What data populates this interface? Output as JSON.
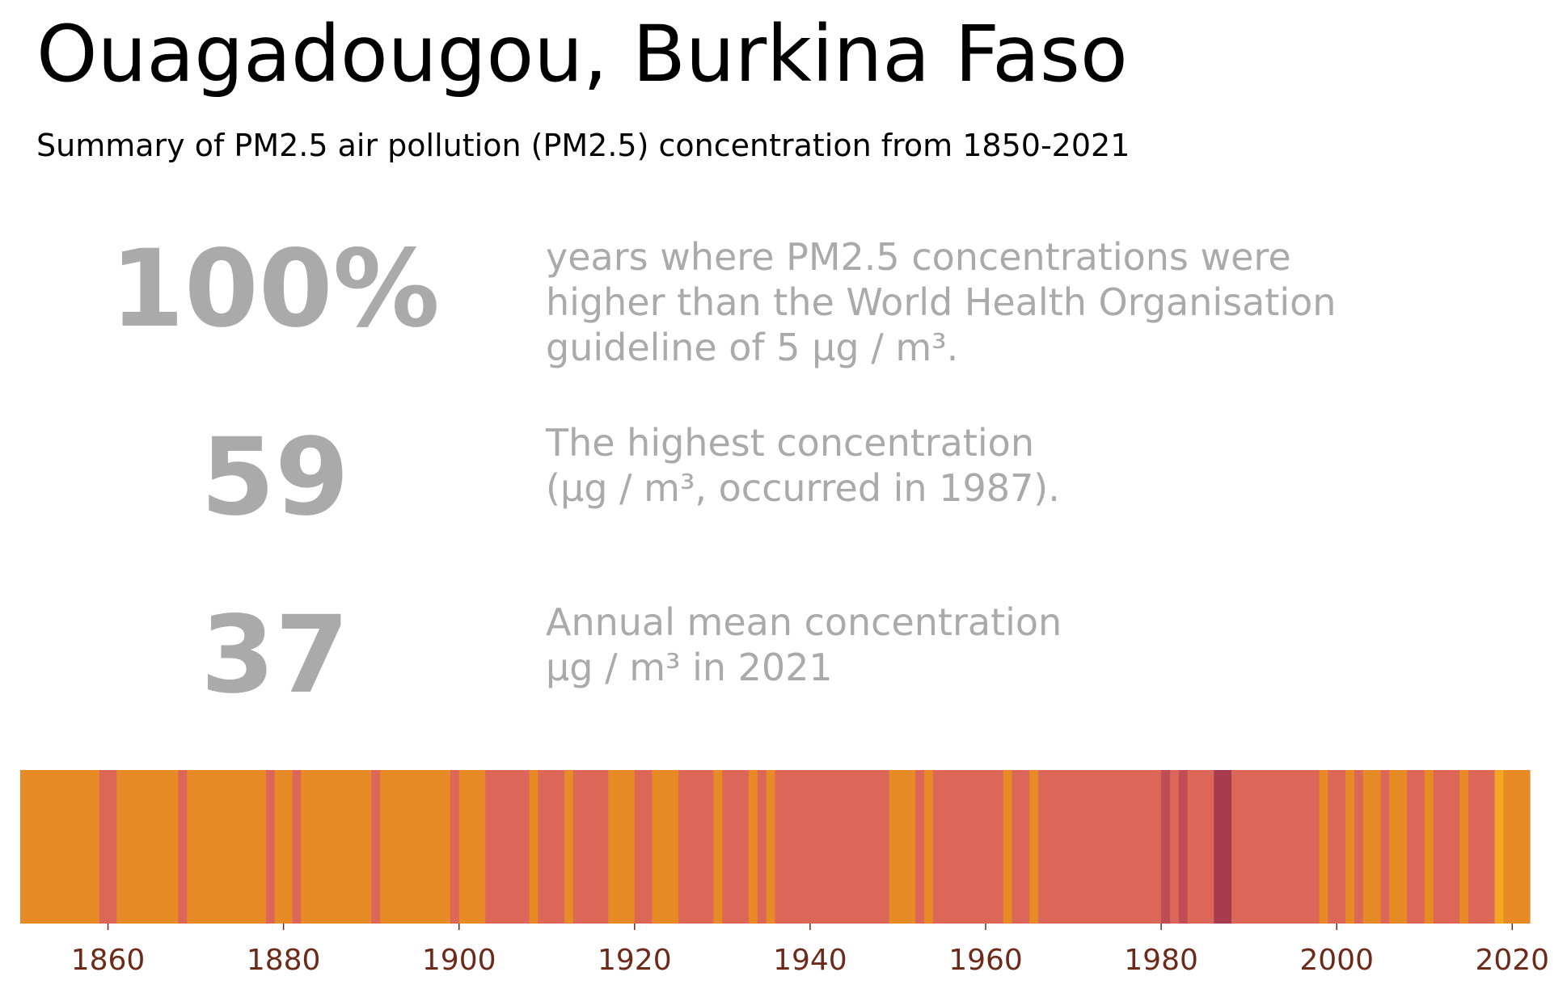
{
  "header": {
    "title": "Ouagadougou, Burkina Faso",
    "subtitle": "Summary of PM2.5 air pollution (PM2.5) concentration from 1850-2021"
  },
  "stats": [
    {
      "value": "100%",
      "lines": [
        "years where PM2.5 concentrations were",
        "higher than the World Health Organisation",
        "guideline of 5 µg / m³."
      ]
    },
    {
      "value": "59",
      "lines": [
        "The highest concentration",
        "(µg / m³, occurred in 1987)."
      ]
    },
    {
      "value": "37",
      "lines": [
        "Annual mean concentration",
        "µg / m³ in 2021"
      ]
    }
  ],
  "colors": {
    "orange": "#e88a26",
    "salmon": "#dc6758",
    "crimson": "#c04d55",
    "maroon": "#a83a4e",
    "yellow": "#f5a623",
    "stat_gray": "#aaaaaa",
    "tick": "#6b2a1a"
  },
  "chart_data": {
    "type": "heatmap",
    "title": "",
    "xlabel": "",
    "ylabel": "",
    "xlim": [
      1850,
      2022
    ],
    "x_ticks": [
      1860,
      1880,
      1900,
      1920,
      1940,
      1960,
      1980,
      2000,
      2020
    ],
    "grid": false,
    "segments": [
      {
        "start": 1850,
        "end": 1859,
        "color": "orange"
      },
      {
        "start": 1859,
        "end": 1861,
        "color": "salmon"
      },
      {
        "start": 1861,
        "end": 1868,
        "color": "orange"
      },
      {
        "start": 1868,
        "end": 1869,
        "color": "salmon"
      },
      {
        "start": 1869,
        "end": 1878,
        "color": "orange"
      },
      {
        "start": 1878,
        "end": 1879,
        "color": "salmon"
      },
      {
        "start": 1879,
        "end": 1881,
        "color": "orange"
      },
      {
        "start": 1881,
        "end": 1882,
        "color": "salmon"
      },
      {
        "start": 1882,
        "end": 1890,
        "color": "orange"
      },
      {
        "start": 1890,
        "end": 1891,
        "color": "salmon"
      },
      {
        "start": 1891,
        "end": 1899,
        "color": "orange"
      },
      {
        "start": 1899,
        "end": 1900,
        "color": "salmon"
      },
      {
        "start": 1900,
        "end": 1903,
        "color": "orange"
      },
      {
        "start": 1903,
        "end": 1908,
        "color": "salmon"
      },
      {
        "start": 1908,
        "end": 1909,
        "color": "orange"
      },
      {
        "start": 1909,
        "end": 1912,
        "color": "salmon"
      },
      {
        "start": 1912,
        "end": 1913,
        "color": "orange"
      },
      {
        "start": 1913,
        "end": 1917,
        "color": "salmon"
      },
      {
        "start": 1917,
        "end": 1920,
        "color": "orange"
      },
      {
        "start": 1920,
        "end": 1922,
        "color": "salmon"
      },
      {
        "start": 1922,
        "end": 1925,
        "color": "orange"
      },
      {
        "start": 1925,
        "end": 1929,
        "color": "salmon"
      },
      {
        "start": 1929,
        "end": 1930,
        "color": "orange"
      },
      {
        "start": 1930,
        "end": 1933,
        "color": "salmon"
      },
      {
        "start": 1933,
        "end": 1934,
        "color": "orange"
      },
      {
        "start": 1934,
        "end": 1935,
        "color": "salmon"
      },
      {
        "start": 1935,
        "end": 1936,
        "color": "orange"
      },
      {
        "start": 1936,
        "end": 1949,
        "color": "salmon"
      },
      {
        "start": 1949,
        "end": 1952,
        "color": "orange"
      },
      {
        "start": 1952,
        "end": 1953,
        "color": "salmon"
      },
      {
        "start": 1953,
        "end": 1954,
        "color": "orange"
      },
      {
        "start": 1954,
        "end": 1962,
        "color": "salmon"
      },
      {
        "start": 1962,
        "end": 1963,
        "color": "orange"
      },
      {
        "start": 1963,
        "end": 1965,
        "color": "salmon"
      },
      {
        "start": 1965,
        "end": 1966,
        "color": "orange"
      },
      {
        "start": 1966,
        "end": 1980,
        "color": "salmon"
      },
      {
        "start": 1980,
        "end": 1981,
        "color": "crimson"
      },
      {
        "start": 1981,
        "end": 1982,
        "color": "salmon"
      },
      {
        "start": 1982,
        "end": 1983,
        "color": "crimson"
      },
      {
        "start": 1983,
        "end": 1986,
        "color": "salmon"
      },
      {
        "start": 1986,
        "end": 1988,
        "color": "maroon"
      },
      {
        "start": 1988,
        "end": 1998,
        "color": "salmon"
      },
      {
        "start": 1998,
        "end": 1999,
        "color": "orange"
      },
      {
        "start": 1999,
        "end": 2001,
        "color": "salmon"
      },
      {
        "start": 2001,
        "end": 2002,
        "color": "orange"
      },
      {
        "start": 2002,
        "end": 2003,
        "color": "salmon"
      },
      {
        "start": 2003,
        "end": 2005,
        "color": "orange"
      },
      {
        "start": 2005,
        "end": 2006,
        "color": "salmon"
      },
      {
        "start": 2006,
        "end": 2008,
        "color": "orange"
      },
      {
        "start": 2008,
        "end": 2010,
        "color": "salmon"
      },
      {
        "start": 2010,
        "end": 2011,
        "color": "orange"
      },
      {
        "start": 2011,
        "end": 2014,
        "color": "salmon"
      },
      {
        "start": 2014,
        "end": 2015,
        "color": "orange"
      },
      {
        "start": 2015,
        "end": 2018,
        "color": "salmon"
      },
      {
        "start": 2018,
        "end": 2019,
        "color": "yellow"
      },
      {
        "start": 2019,
        "end": 2022,
        "color": "orange"
      }
    ]
  }
}
